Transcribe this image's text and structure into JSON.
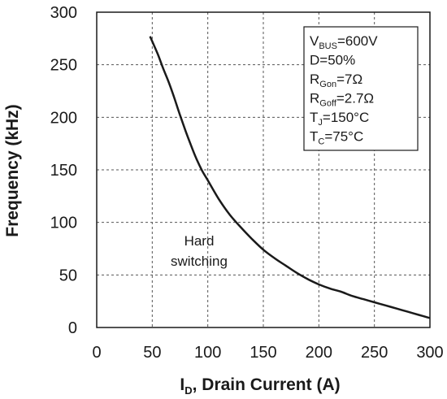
{
  "chart_data": {
    "type": "line",
    "title": "",
    "xlabel": {
      "main": "I",
      "sub": "D",
      "rest": ", Drain Current (A)"
    },
    "ylabel": "Frequency (kHz)",
    "xlim": [
      0,
      300
    ],
    "ylim": [
      0,
      300
    ],
    "xticks": [
      "0",
      "50",
      "100",
      "150",
      "200",
      "250",
      "300"
    ],
    "yticks": [
      "0",
      "50",
      "100",
      "150",
      "200",
      "250",
      "300"
    ],
    "grid": true,
    "series": [
      {
        "x": [
          48,
          55,
          60,
          65,
          70,
          75,
          80,
          85,
          90,
          95,
          100,
          110,
          120,
          130,
          140,
          150,
          160,
          170,
          180,
          190,
          200,
          210,
          220,
          230,
          240,
          250,
          260,
          270,
          280,
          290,
          300
        ],
        "y": [
          277,
          260,
          246,
          233,
          218,
          202,
          187,
          173,
          160,
          149,
          140,
          122,
          107,
          95,
          84,
          74,
          66,
          59,
          52,
          46,
          41,
          37,
          34,
          30,
          27,
          24,
          21,
          18,
          15,
          12,
          9
        ]
      }
    ],
    "legend": {
      "placement": "top-right",
      "lines": [
        {
          "main": "V",
          "sub": "BUS",
          "rest": "=600V"
        },
        {
          "main": "D=50%",
          "sub": "",
          "rest": ""
        },
        {
          "main": "R",
          "sub": "Gon",
          "rest": "=7Ω"
        },
        {
          "main": "R",
          "sub": "Goff",
          "rest": "=2.7Ω"
        },
        {
          "main": "T",
          "sub": "J",
          "rest": "=150°C"
        },
        {
          "main": "T",
          "sub": "C",
          "rest": "=75°C"
        }
      ]
    },
    "annotations": [
      "Hard",
      "switching"
    ]
  }
}
